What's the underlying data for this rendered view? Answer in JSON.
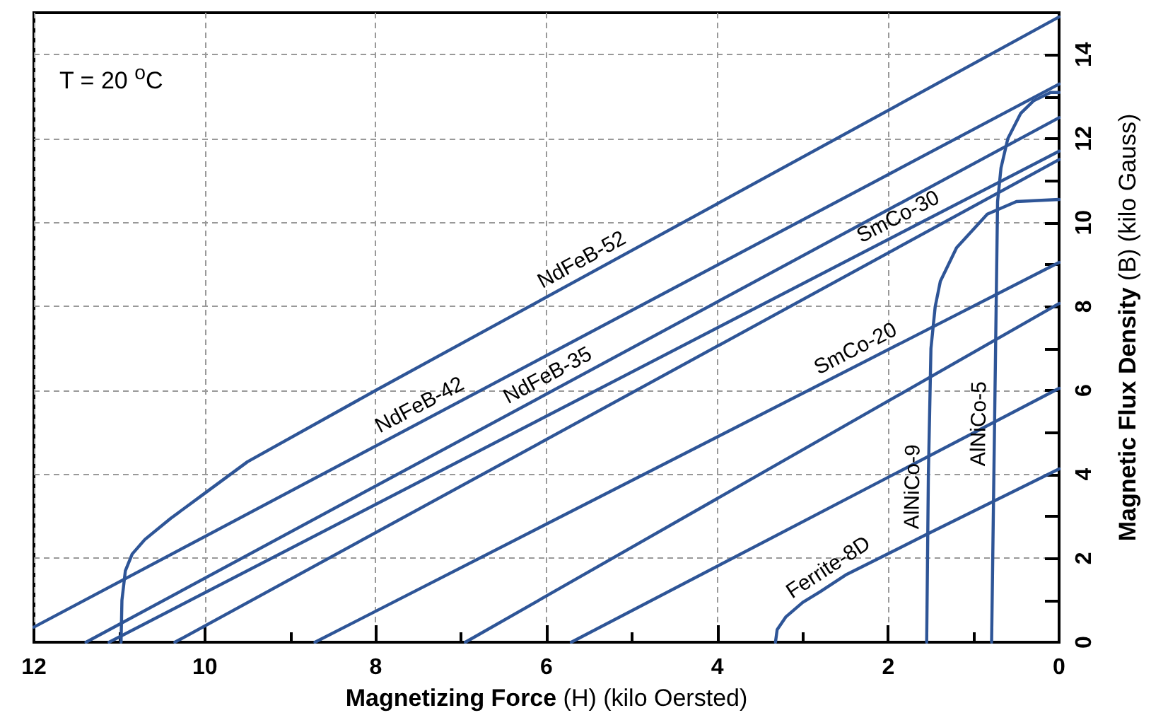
{
  "chart_data": {
    "type": "line",
    "xlabel": "Magnetizing Force (H) (kilo Oersted)",
    "ylabel": "Magnetic Flux Density (B) (kilo Gauss)",
    "annotations": [
      "T = 20 $^{o}$C"
    ],
    "xlim": [
      12,
      0
    ],
    "xticks": [
      12,
      {
        "value": 11,
        "label": null
      },
      10,
      {
        "value": 9,
        "label": null
      },
      8,
      {
        "value": 7,
        "label": null
      },
      6,
      {
        "value": 5,
        "label": null
      },
      4,
      {
        "value": 3,
        "label": null
      },
      2,
      {
        "value": 1,
        "label": null
      },
      0
    ],
    "ylim": [
      0,
      15
    ],
    "yticks": [
      0,
      {
        "value": 1,
        "label": null
      },
      2,
      {
        "value": 3,
        "label": null
      },
      4,
      {
        "value": 5,
        "label": null
      },
      6,
      {
        "value": 7,
        "label": null
      },
      8,
      {
        "value": 9,
        "label": null
      },
      10,
      {
        "value": 11,
        "label": null
      },
      12,
      {
        "value": 13,
        "label": null
      },
      14
    ],
    "grid": true,
    "legend": false,
    "marker": "none",
    "line_style": "solid",
    "series": [
      {
        "name": "NdFeB-52",
        "color": "#2e5597",
        "x": [
          10.98,
          10.97,
          10.93,
          10.85,
          10.7,
          10.4,
          10.0,
          9.5,
          8,
          0
        ],
        "values": [
          0,
          1.0,
          1.7,
          2.1,
          2.45,
          2.95,
          3.55,
          4.3,
          6.0,
          14.9
        ]
      },
      {
        "name": "NdFeB-42",
        "color": "#2e5597",
        "x": [
          12,
          0
        ],
        "values": [
          0.36,
          13.3
        ]
      },
      {
        "name": "NdFeB-35",
        "color": "#2e5597",
        "x": [
          11.39,
          0
        ],
        "values": [
          0,
          12.5
        ]
      },
      {
        "name": "SmCo-30",
        "color": "#2e5597",
        "x": [
          11.12,
          0
        ],
        "values": [
          0,
          11.7
        ]
      },
      {
        "color": "#2e5597",
        "x": [
          10.35,
          0
        ],
        "values": [
          0,
          11.5
        ]
      },
      {
        "name": "SmCo-20",
        "color": "#2e5597",
        "x": [
          8.71,
          0
        ],
        "values": [
          0,
          9.05
        ]
      },
      {
        "color": "#2e5597",
        "x": [
          6.95,
          0
        ],
        "values": [
          0,
          8.07
        ]
      },
      {
        "color": "#2e5597",
        "x": [
          5.71,
          0
        ],
        "values": [
          0,
          6.05
        ]
      },
      {
        "name": "Ferrite-8D",
        "color": "#2e5597",
        "x": [
          3.32,
          3.3,
          3.2,
          3.0,
          2.8,
          2.5,
          1.55,
          0
        ],
        "values": [
          0,
          0.3,
          0.6,
          0.95,
          1.2,
          1.6,
          2.57,
          4.13
        ]
      },
      {
        "name": "AlNiCo-9",
        "color": "#2e5597",
        "x": [
          1.55,
          1.53,
          1.5,
          1.45,
          1.39,
          1.2,
          0.84,
          0.5,
          0
        ],
        "values": [
          0,
          4,
          7,
          8.0,
          8.6,
          9.4,
          10.2,
          10.5,
          10.55
        ]
      },
      {
        "name": "AlNiCo-5",
        "color": "#2e5597",
        "x": [
          0.79,
          0.75,
          0.72,
          0.68,
          0.6,
          0.45,
          0.3,
          0.1,
          0
        ],
        "values": [
          0,
          6,
          10.5,
          11.3,
          12.0,
          12.6,
          12.9,
          13.1,
          13.1
        ]
      }
    ]
  }
}
